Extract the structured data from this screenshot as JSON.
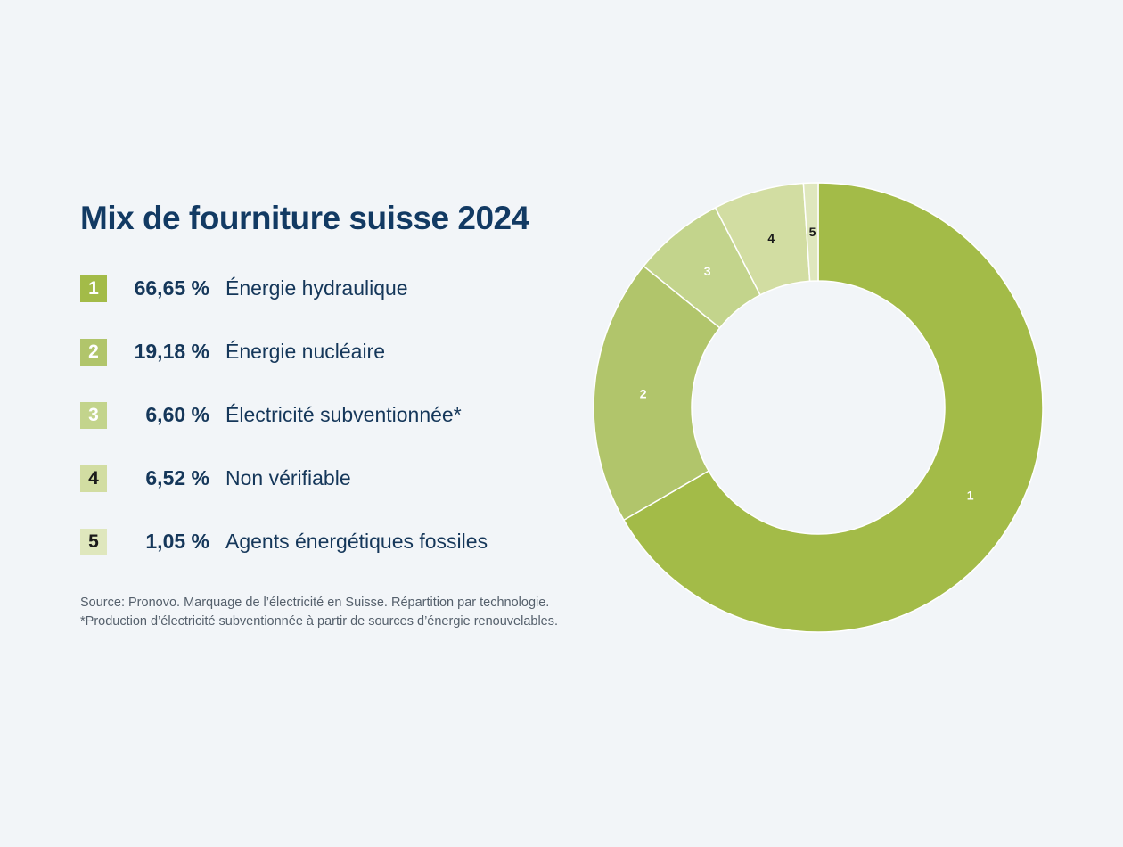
{
  "title": "Mix de fourniture suisse 2024",
  "legend": [
    {
      "number": "1",
      "percent": "66,65 %",
      "label": "Énergie hydraulique",
      "color": "#a3bb48",
      "text_color": "#ffffff"
    },
    {
      "number": "2",
      "percent": "19,18 %",
      "label": "Énergie nucléaire",
      "color": "#b1c56b",
      "text_color": "#ffffff"
    },
    {
      "number": "3",
      "percent": "6,60 %",
      "label": "Électricité subventionnée*",
      "color": "#c3d48c",
      "text_color": "#ffffff"
    },
    {
      "number": "4",
      "percent": "6,52 %",
      "label": "Non vérifiable",
      "color": "#d2ddA2",
      "text_color": "#1a1a1a"
    },
    {
      "number": "5",
      "percent": "1,05 %",
      "label": "Agents énergétiques fossiles",
      "color": "#dfe7bd",
      "text_color": "#1a1a1a"
    }
  ],
  "notes": {
    "source": "Source: Pronovo. Marquage de l’électricité en Suisse. Répartition par technologie.",
    "footnote": "*Production d’électricité subventionnée à partir de sources d’énergie renouvelables."
  },
  "chart_data": {
    "type": "pie",
    "title": "Mix de fourniture suisse 2024",
    "categories": [
      "Énergie hydraulique",
      "Énergie nucléaire",
      "Électricité subventionnée*",
      "Non vérifiable",
      "Agents énergétiques fossiles"
    ],
    "values": [
      66.65,
      19.18,
      6.6,
      6.52,
      1.05
    ],
    "slice_labels": [
      "1",
      "2",
      "3",
      "4",
      "5"
    ],
    "colors": [
      "#a3bb48",
      "#b1c56b",
      "#c3d48c",
      "#d2dda2",
      "#dfe7bd"
    ],
    "label_colors": [
      "#ffffff",
      "#ffffff",
      "#ffffff",
      "#1a1a1a",
      "#1a1a1a"
    ],
    "donut": true,
    "start": "top",
    "direction": "clockwise"
  }
}
